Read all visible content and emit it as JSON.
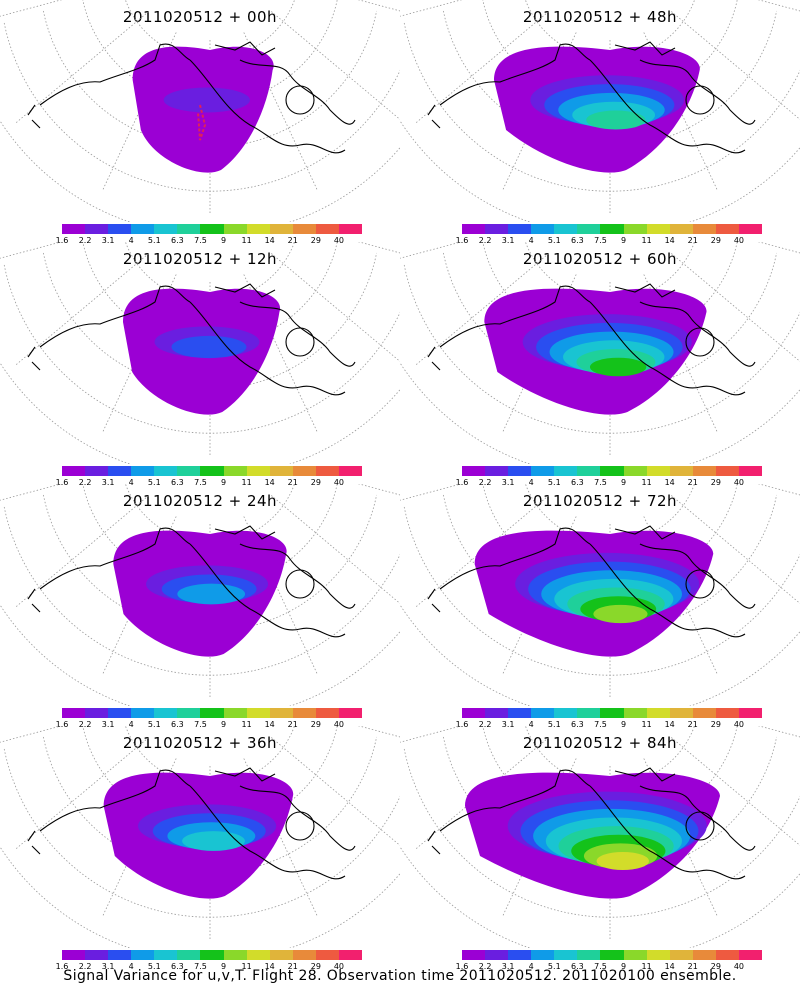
{
  "panels": [
    {
      "title": "2011020512 + 00h",
      "lead": 0
    },
    {
      "title": "2011020512 + 48h",
      "lead": 48
    },
    {
      "title": "2011020512 + 12h",
      "lead": 12
    },
    {
      "title": "2011020512 + 60h",
      "lead": 60
    },
    {
      "title": "2011020512 + 24h",
      "lead": 24
    },
    {
      "title": "2011020512 + 72h",
      "lead": 72
    },
    {
      "title": "2011020512 + 36h",
      "lead": 36
    },
    {
      "title": "2011020512 + 84h",
      "lead": 84
    }
  ],
  "colorbar": {
    "labels": [
      "1.6",
      "2.2",
      "3.1",
      "4",
      "5.1",
      "6.3",
      "7.5",
      "9",
      "11",
      "14",
      "21",
      "29",
      "40"
    ],
    "colors": [
      "#9b00d4",
      "#6a1ee0",
      "#2a4ef0",
      "#0f9be8",
      "#19c4d2",
      "#1fd09a",
      "#14c21a",
      "#8ad82a",
      "#d2dc2a",
      "#e0b43a",
      "#e88a3a",
      "#ee5a40",
      "#f2206e"
    ]
  },
  "footer": "Signal Variance for u,v,T. Flight 28. Observation time 2011020512. 2011020100 ensemble."
}
